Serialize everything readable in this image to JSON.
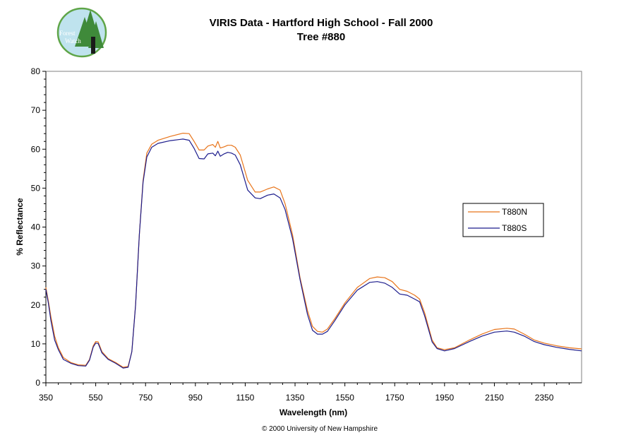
{
  "chart_data": {
    "type": "line",
    "title": "VIRIS Data - Hartford High School - Fall 2000",
    "subtitle": "Tree #880",
    "xlabel": "Wavelength (nm)",
    "ylabel": "% Reflectance",
    "xlim": [
      350,
      2500
    ],
    "ylim": [
      0,
      80
    ],
    "x_ticks": [
      350,
      550,
      750,
      950,
      1150,
      1350,
      1550,
      1750,
      1950,
      2150,
      2350
    ],
    "y_ticks": [
      0,
      10,
      20,
      30,
      40,
      50,
      60,
      70,
      80
    ],
    "grid": false,
    "legend_position": "right",
    "series": [
      {
        "name": "T880N",
        "color": "#e8741a",
        "points": [
          [
            350,
            24.5
          ],
          [
            360,
            21
          ],
          [
            370,
            17
          ],
          [
            385,
            12
          ],
          [
            400,
            9
          ],
          [
            420,
            6.5
          ],
          [
            450,
            5.2
          ],
          [
            480,
            4.6
          ],
          [
            510,
            4.5
          ],
          [
            525,
            6
          ],
          [
            540,
            9.5
          ],
          [
            550,
            10.6
          ],
          [
            560,
            10.5
          ],
          [
            575,
            8
          ],
          [
            600,
            6.2
          ],
          [
            630,
            5.2
          ],
          [
            660,
            4
          ],
          [
            680,
            4.2
          ],
          [
            695,
            8
          ],
          [
            710,
            20
          ],
          [
            725,
            38
          ],
          [
            740,
            52
          ],
          [
            755,
            59
          ],
          [
            775,
            61.3
          ],
          [
            800,
            62.3
          ],
          [
            850,
            63.3
          ],
          [
            900,
            64.1
          ],
          [
            925,
            64
          ],
          [
            945,
            62
          ],
          [
            965,
            59.8
          ],
          [
            985,
            59.8
          ],
          [
            1000,
            60.8
          ],
          [
            1020,
            61.2
          ],
          [
            1030,
            60.5
          ],
          [
            1040,
            62
          ],
          [
            1050,
            60.3
          ],
          [
            1065,
            60.6
          ],
          [
            1080,
            61
          ],
          [
            1095,
            61
          ],
          [
            1110,
            60.5
          ],
          [
            1130,
            58.5
          ],
          [
            1160,
            52
          ],
          [
            1190,
            49
          ],
          [
            1210,
            49
          ],
          [
            1240,
            49.8
          ],
          [
            1265,
            50.3
          ],
          [
            1290,
            49.5
          ],
          [
            1310,
            46
          ],
          [
            1340,
            38
          ],
          [
            1370,
            27
          ],
          [
            1400,
            18.5
          ],
          [
            1420,
            14.5
          ],
          [
            1440,
            13.2
          ],
          [
            1460,
            13
          ],
          [
            1480,
            13.8
          ],
          [
            1510,
            16.5
          ],
          [
            1550,
            20.5
          ],
          [
            1600,
            24.5
          ],
          [
            1650,
            26.8
          ],
          [
            1680,
            27.2
          ],
          [
            1710,
            27
          ],
          [
            1740,
            26
          ],
          [
            1770,
            24
          ],
          [
            1800,
            23.5
          ],
          [
            1830,
            22.5
          ],
          [
            1850,
            21.5
          ],
          [
            1870,
            18
          ],
          [
            1900,
            11
          ],
          [
            1920,
            9
          ],
          [
            1950,
            8.5
          ],
          [
            1990,
            9
          ],
          [
            2050,
            11
          ],
          [
            2100,
            12.5
          ],
          [
            2150,
            13.7
          ],
          [
            2200,
            14
          ],
          [
            2230,
            13.8
          ],
          [
            2270,
            12.5
          ],
          [
            2310,
            11
          ],
          [
            2350,
            10.2
          ],
          [
            2400,
            9.5
          ],
          [
            2450,
            9
          ],
          [
            2500,
            8.7
          ]
        ]
      },
      {
        "name": "T880S",
        "color": "#1c1c8c",
        "points": [
          [
            350,
            24
          ],
          [
            360,
            20.5
          ],
          [
            370,
            16
          ],
          [
            385,
            11
          ],
          [
            400,
            8.5
          ],
          [
            420,
            6
          ],
          [
            450,
            5
          ],
          [
            480,
            4.4
          ],
          [
            510,
            4.3
          ],
          [
            525,
            5.8
          ],
          [
            540,
            9.2
          ],
          [
            550,
            10.2
          ],
          [
            560,
            10.1
          ],
          [
            575,
            7.7
          ],
          [
            600,
            6
          ],
          [
            630,
            5
          ],
          [
            660,
            3.8
          ],
          [
            680,
            4
          ],
          [
            695,
            8
          ],
          [
            710,
            20
          ],
          [
            725,
            38
          ],
          [
            740,
            51.5
          ],
          [
            755,
            58
          ],
          [
            775,
            60.5
          ],
          [
            800,
            61.5
          ],
          [
            850,
            62.2
          ],
          [
            900,
            62.6
          ],
          [
            925,
            62.3
          ],
          [
            945,
            60.2
          ],
          [
            965,
            57.6
          ],
          [
            985,
            57.5
          ],
          [
            1000,
            58.8
          ],
          [
            1020,
            59
          ],
          [
            1030,
            58.3
          ],
          [
            1040,
            59.5
          ],
          [
            1050,
            58.2
          ],
          [
            1065,
            58.8
          ],
          [
            1080,
            59.2
          ],
          [
            1095,
            59
          ],
          [
            1110,
            58.5
          ],
          [
            1130,
            56
          ],
          [
            1160,
            49.5
          ],
          [
            1190,
            47.5
          ],
          [
            1210,
            47.3
          ],
          [
            1240,
            48.2
          ],
          [
            1265,
            48.5
          ],
          [
            1290,
            47.5
          ],
          [
            1310,
            44.5
          ],
          [
            1340,
            37
          ],
          [
            1370,
            26.5
          ],
          [
            1400,
            17.5
          ],
          [
            1420,
            13.5
          ],
          [
            1440,
            12.5
          ],
          [
            1460,
            12.5
          ],
          [
            1480,
            13.2
          ],
          [
            1510,
            16
          ],
          [
            1550,
            20
          ],
          [
            1600,
            23.8
          ],
          [
            1650,
            25.8
          ],
          [
            1680,
            26
          ],
          [
            1710,
            25.6
          ],
          [
            1740,
            24.5
          ],
          [
            1770,
            22.8
          ],
          [
            1800,
            22.5
          ],
          [
            1830,
            21.5
          ],
          [
            1850,
            20.8
          ],
          [
            1870,
            17.2
          ],
          [
            1900,
            10.5
          ],
          [
            1920,
            8.8
          ],
          [
            1950,
            8.2
          ],
          [
            1990,
            8.8
          ],
          [
            2050,
            10.6
          ],
          [
            2100,
            12
          ],
          [
            2150,
            13
          ],
          [
            2200,
            13.3
          ],
          [
            2230,
            13
          ],
          [
            2270,
            12
          ],
          [
            2310,
            10.6
          ],
          [
            2350,
            9.8
          ],
          [
            2400,
            9.1
          ],
          [
            2450,
            8.6
          ],
          [
            2500,
            8.2
          ]
        ]
      }
    ]
  },
  "logo": {
    "line1": "Forest",
    "line2": "Watch",
    "ring_color": "#5fa548",
    "fill_color": "#bfe3ee",
    "tree_color": "#3f8a3a"
  },
  "footer": "© 2000 University of New Hampshire"
}
